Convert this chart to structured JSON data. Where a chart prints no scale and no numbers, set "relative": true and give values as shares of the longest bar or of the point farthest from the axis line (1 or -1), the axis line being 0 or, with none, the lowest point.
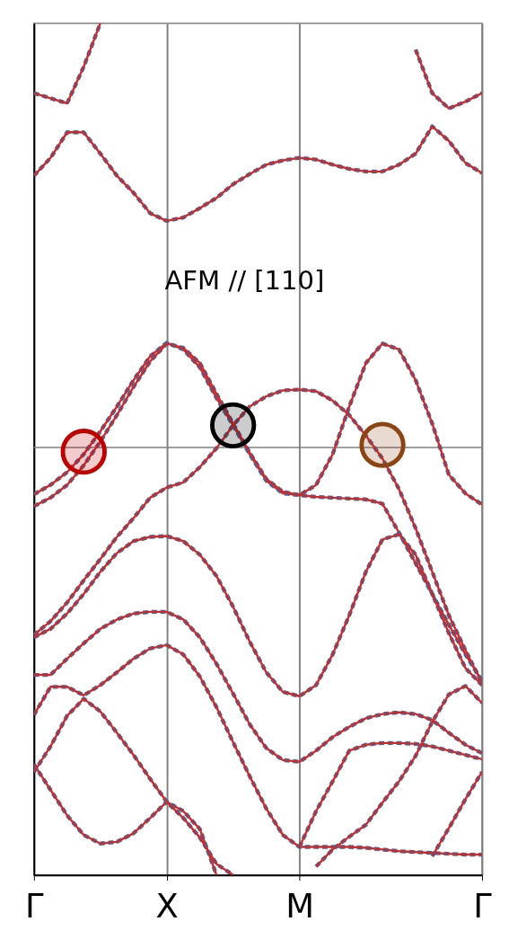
{
  "chart_data": {
    "type": "line",
    "relative": true,
    "categories": [
      "Γ",
      null,
      null,
      null,
      null,
      null,
      null,
      null,
      "X",
      null,
      null,
      null,
      null,
      null,
      null,
      null,
      "M",
      null,
      null,
      null,
      null,
      null,
      null,
      null,
      null,
      null,
      null,
      "Γ"
    ],
    "tick_labels": "x",
    "grid": "x",
    "annotations": [
      "AFM // [110]"
    ],
    "ref_lines": [
      {
        "axis": "y",
        "value": 0.502,
        "color": "#808080"
      }
    ],
    "series": [
      {
        "color": "#1f77b4",
        "line_style": "dashed",
        "values": [
          0.918,
          0.912,
          0.906,
          0.949,
          1.0,
          null,
          null,
          null,
          null,
          null,
          null,
          null,
          null,
          null,
          null,
          null,
          null,
          null,
          null,
          null,
          null,
          null,
          null,
          null,
          null,
          null,
          null,
          null
        ]
      },
      {
        "color": "#d62728",
        "line_style": "solid",
        "values": [
          0.918,
          0.912,
          0.906,
          0.949,
          1.0,
          null,
          null,
          null,
          null,
          null,
          null,
          null,
          null,
          null,
          null,
          null,
          null,
          null,
          null,
          null,
          null,
          null,
          null,
          null,
          null,
          null,
          null,
          null
        ]
      },
      {
        "color": "#1f77b4",
        "line_style": "dashed",
        "values": [
          0.821,
          0.842,
          0.872,
          0.872,
          0.847,
          0.821,
          0.801,
          0.777,
          0.768,
          0.772,
          0.783,
          0.795,
          0.811,
          0.823,
          0.834,
          0.839,
          0.842,
          0.84,
          0.834,
          0.829,
          0.826,
          0.826,
          0.834,
          0.847,
          0.879,
          0.862,
          0.836,
          0.824
        ]
      },
      {
        "color": "#d62728",
        "line_style": "solid",
        "values": [
          0.821,
          0.842,
          0.872,
          0.872,
          0.847,
          0.821,
          0.801,
          0.777,
          0.768,
          0.772,
          0.783,
          0.795,
          0.811,
          0.823,
          0.834,
          0.839,
          0.842,
          0.84,
          0.834,
          0.829,
          0.826,
          0.826,
          0.834,
          0.847,
          0.879,
          0.862,
          0.836,
          0.824
        ]
      },
      {
        "color": "#1f77b4",
        "line_style": "dashed",
        "values": [
          null,
          null,
          null,
          null,
          null,
          null,
          null,
          null,
          null,
          null,
          null,
          null,
          null,
          null,
          null,
          null,
          null,
          null,
          null,
          null,
          null,
          null,
          null,
          0.969,
          0.918,
          0.9,
          0.908,
          0.918
        ]
      },
      {
        "color": "#d62728",
        "line_style": "solid",
        "values": [
          null,
          null,
          null,
          null,
          null,
          null,
          null,
          null,
          null,
          null,
          null,
          null,
          null,
          null,
          null,
          null,
          null,
          null,
          null,
          null,
          null,
          null,
          null,
          0.969,
          0.918,
          0.9,
          0.908,
          0.918
        ]
      },
      {
        "color": "#1f77b4",
        "line_style": "dashed",
        "values": [
          0.447,
          0.458,
          0.473,
          0.494,
          0.521,
          0.55,
          0.581,
          0.609,
          0.625,
          0.617,
          0.596,
          0.56,
          0.528,
          0.494,
          0.463,
          0.448,
          0.446,
          0.444,
          0.443,
          0.442,
          0.441,
          0.436,
          0.402,
          0.366,
          0.33,
          0.294,
          0.259,
          0.228
        ]
      },
      {
        "color": "#d62728",
        "line_style": "solid",
        "values": [
          0.447,
          0.458,
          0.473,
          0.494,
          0.521,
          0.55,
          0.581,
          0.609,
          0.625,
          0.617,
          0.596,
          0.56,
          0.528,
          0.494,
          0.463,
          0.448,
          0.446,
          0.444,
          0.443,
          0.442,
          0.441,
          0.436,
          0.402,
          0.366,
          0.33,
          0.294,
          0.259,
          0.228
        ]
      },
      {
        "color": "#1f77b4",
        "line_style": "dashed",
        "values": [
          0.433,
          0.443,
          0.458,
          0.481,
          0.509,
          0.54,
          0.573,
          0.603,
          0.624,
          0.619,
          0.601,
          0.565,
          0.53,
          0.496,
          0.465,
          0.45,
          0.446,
          0.458,
          0.494,
          0.55,
          0.601,
          0.624,
          0.617,
          0.581,
          0.53,
          0.47,
          0.448,
          0.435
        ]
      },
      {
        "color": "#d62728",
        "line_style": "solid",
        "values": [
          0.433,
          0.443,
          0.458,
          0.481,
          0.509,
          0.54,
          0.573,
          0.603,
          0.624,
          0.619,
          0.601,
          0.565,
          0.53,
          0.496,
          0.465,
          0.45,
          0.446,
          0.458,
          0.494,
          0.55,
          0.601,
          0.624,
          0.617,
          0.581,
          0.53,
          0.47,
          0.448,
          0.435
        ]
      },
      {
        "color": "#1f77b4",
        "line_style": "dashed",
        "values": [
          0.282,
          0.298,
          0.32,
          0.346,
          0.371,
          0.397,
          0.419,
          0.443,
          0.455,
          0.461,
          0.479,
          0.501,
          0.528,
          0.55,
          0.562,
          0.569,
          0.57,
          0.568,
          0.557,
          0.54,
          0.516,
          0.489,
          0.453,
          0.407,
          0.356,
          0.305,
          0.264,
          0.225
        ]
      },
      {
        "color": "#d62728",
        "line_style": "solid",
        "values": [
          0.282,
          0.298,
          0.32,
          0.346,
          0.371,
          0.397,
          0.419,
          0.443,
          0.455,
          0.461,
          0.479,
          0.501,
          0.528,
          0.55,
          0.562,
          0.569,
          0.57,
          0.568,
          0.557,
          0.54,
          0.516,
          0.489,
          0.453,
          0.407,
          0.356,
          0.305,
          0.264,
          0.225
        ]
      },
      {
        "color": "#1f77b4",
        "line_style": "dashed",
        "values": [
          0.279,
          0.289,
          0.307,
          0.33,
          0.356,
          0.378,
          0.392,
          0.397,
          0.398,
          0.392,
          0.376,
          0.351,
          0.315,
          0.274,
          0.238,
          0.215,
          0.21,
          0.223,
          0.259,
          0.305,
          0.356,
          0.394,
          0.4,
          0.376,
          0.33,
          0.284,
          0.243,
          0.223
        ]
      },
      {
        "color": "#d62728",
        "line_style": "solid",
        "values": [
          0.279,
          0.289,
          0.307,
          0.33,
          0.356,
          0.378,
          0.392,
          0.397,
          0.398,
          0.392,
          0.376,
          0.351,
          0.315,
          0.274,
          0.238,
          0.215,
          0.21,
          0.223,
          0.259,
          0.305,
          0.356,
          0.394,
          0.4,
          0.376,
          0.33,
          0.284,
          0.243,
          0.223
        ]
      },
      {
        "color": "#1f77b4",
        "line_style": "dashed",
        "values": [
          0.235,
          0.235,
          0.254,
          0.272,
          0.289,
          0.3,
          0.307,
          0.309,
          0.309,
          0.3,
          0.279,
          0.248,
          0.213,
          0.177,
          0.149,
          0.135,
          0.133,
          0.146,
          0.162,
          0.174,
          0.184,
          0.189,
          0.191,
          0.189,
          0.182,
          0.167,
          0.153,
          0.143
        ]
      },
      {
        "color": "#d62728",
        "line_style": "solid",
        "values": [
          0.235,
          0.235,
          0.254,
          0.272,
          0.289,
          0.3,
          0.307,
          0.309,
          0.309,
          0.3,
          0.279,
          0.248,
          0.213,
          0.177,
          0.149,
          0.135,
          0.133,
          0.146,
          0.162,
          0.174,
          0.184,
          0.189,
          0.191,
          0.189,
          0.182,
          0.167,
          0.153,
          0.143
        ]
      },
      {
        "color": "#1f77b4",
        "line_style": "dashed",
        "values": [
          0.188,
          0.221,
          0.221,
          0.211,
          0.223,
          0.238,
          0.254,
          0.266,
          0.27,
          0.259,
          0.233,
          0.197,
          0.156,
          0.116,
          0.078,
          0.047,
          0.033,
          0.033,
          0.033,
          0.033,
          0.032,
          0.03,
          0.028,
          0.027,
          0.026,
          0.025,
          0.024,
          0.024
        ]
      },
      {
        "color": "#d62728",
        "line_style": "solid",
        "values": [
          0.188,
          0.221,
          0.221,
          0.211,
          0.223,
          0.238,
          0.254,
          0.266,
          0.27,
          0.259,
          0.233,
          0.197,
          0.156,
          0.116,
          0.078,
          0.047,
          0.033,
          0.033,
          0.033,
          0.033,
          0.032,
          0.03,
          0.028,
          0.027,
          0.026,
          0.025,
          0.024,
          0.024
        ]
      },
      {
        "color": "#1f77b4",
        "line_style": "dashed",
        "values": [
          null,
          null,
          null,
          null,
          null,
          null,
          null,
          null,
          null,
          null,
          null,
          null,
          null,
          null,
          null,
          null,
          0.033,
          0.075,
          0.11,
          0.146,
          0.153,
          0.155,
          0.155,
          0.154,
          0.151,
          0.146,
          0.141,
          0.136
        ]
      },
      {
        "color": "#d62728",
        "line_style": "solid",
        "values": [
          null,
          null,
          null,
          null,
          null,
          null,
          null,
          null,
          null,
          null,
          null,
          null,
          null,
          null,
          null,
          null,
          0.033,
          0.075,
          0.11,
          0.146,
          0.153,
          0.155,
          0.155,
          0.154,
          0.151,
          0.146,
          0.141,
          0.136
        ]
      },
      {
        "color": "#1f77b4",
        "line_style": "dashed",
        "values": [
          0.13,
          0.1,
          0.07,
          0.047,
          0.037,
          0.039,
          0.049,
          0.067,
          0.086,
          0.075,
          0.054,
          0,
          null,
          null,
          null,
          null,
          null,
          null,
          null,
          null,
          null,
          null,
          null,
          null,
          null,
          null,
          null,
          null
        ]
      },
      {
        "color": "#d62728",
        "line_style": "solid",
        "values": [
          0.13,
          0.1,
          0.07,
          0.047,
          0.037,
          0.039,
          0.049,
          0.067,
          0.086,
          0.075,
          0.054,
          0,
          null,
          null,
          null,
          null,
          null,
          null,
          null,
          null,
          null,
          null,
          null,
          null,
          null,
          null,
          null,
          null
        ]
      },
      {
        "color": "#1f77b4",
        "line_style": "dashed",
        "values": [
          0.121,
          0.151,
          0.187,
          0.207,
          0.192,
          0.167,
          0.141,
          0.113,
          0.086,
          0.067,
          0.044,
          0.013,
          0,
          null,
          null,
          null,
          null,
          null,
          null,
          null,
          null,
          null,
          null,
          null,
          null,
          null,
          null,
          null
        ]
      },
      {
        "color": "#d62728",
        "line_style": "solid",
        "values": [
          0.121,
          0.151,
          0.187,
          0.207,
          0.192,
          0.167,
          0.141,
          0.113,
          0.086,
          0.067,
          0.044,
          0.013,
          0,
          null,
          null,
          null,
          null,
          null,
          null,
          null,
          null,
          null,
          null,
          null,
          null,
          null,
          null,
          null
        ]
      },
      {
        "color": "#1f77b4",
        "line_style": "dashed",
        "values": [
          null,
          null,
          null,
          null,
          null,
          null,
          null,
          null,
          null,
          null,
          null,
          null,
          null,
          null,
          null,
          null,
          null,
          null,
          null,
          null,
          null,
          null,
          null,
          null,
          0.022,
          0.055,
          0.089,
          0.121
        ]
      },
      {
        "color": "#d62728",
        "line_style": "solid",
        "values": [
          null,
          null,
          null,
          null,
          null,
          null,
          null,
          null,
          null,
          null,
          null,
          null,
          null,
          null,
          null,
          null,
          null,
          null,
          null,
          null,
          null,
          null,
          null,
          null,
          0.022,
          0.055,
          0.089,
          0.121
        ]
      },
      {
        "color": "#1f77b4",
        "line_style": "dashed",
        "values": [
          null,
          null,
          null,
          null,
          null,
          null,
          null,
          null,
          null,
          null,
          null,
          null,
          null,
          null,
          null,
          null,
          null,
          0.01,
          0.03,
          0.045,
          0.059,
          0.085,
          0.11,
          0.14,
          0.18,
          0.212,
          0.222,
          0.202
        ]
      },
      {
        "color": "#d62728",
        "line_style": "solid",
        "values": [
          null,
          null,
          null,
          null,
          null,
          null,
          null,
          null,
          null,
          null,
          null,
          null,
          null,
          null,
          null,
          null,
          null,
          0.01,
          0.03,
          0.045,
          0.059,
          0.085,
          0.11,
          0.14,
          0.18,
          0.212,
          0.222,
          0.202
        ]
      },
      {
        "type": "scatter",
        "marker": "circle",
        "values": [
          null,
          null,
          null,
          0.497,
          null,
          null,
          null,
          null,
          null,
          null,
          null,
          null,
          0.528,
          null,
          null,
          null,
          null,
          null,
          null,
          null,
          null,
          0.505,
          null,
          null,
          null,
          null,
          null,
          null
        ],
        "colors": [
          null,
          null,
          null,
          "#c00000",
          null,
          null,
          null,
          null,
          null,
          null,
          null,
          null,
          "#000000",
          null,
          null,
          null,
          null,
          null,
          null,
          null,
          null,
          "#8b4513",
          null,
          null,
          null,
          null,
          null,
          null
        ]
      }
    ]
  }
}
